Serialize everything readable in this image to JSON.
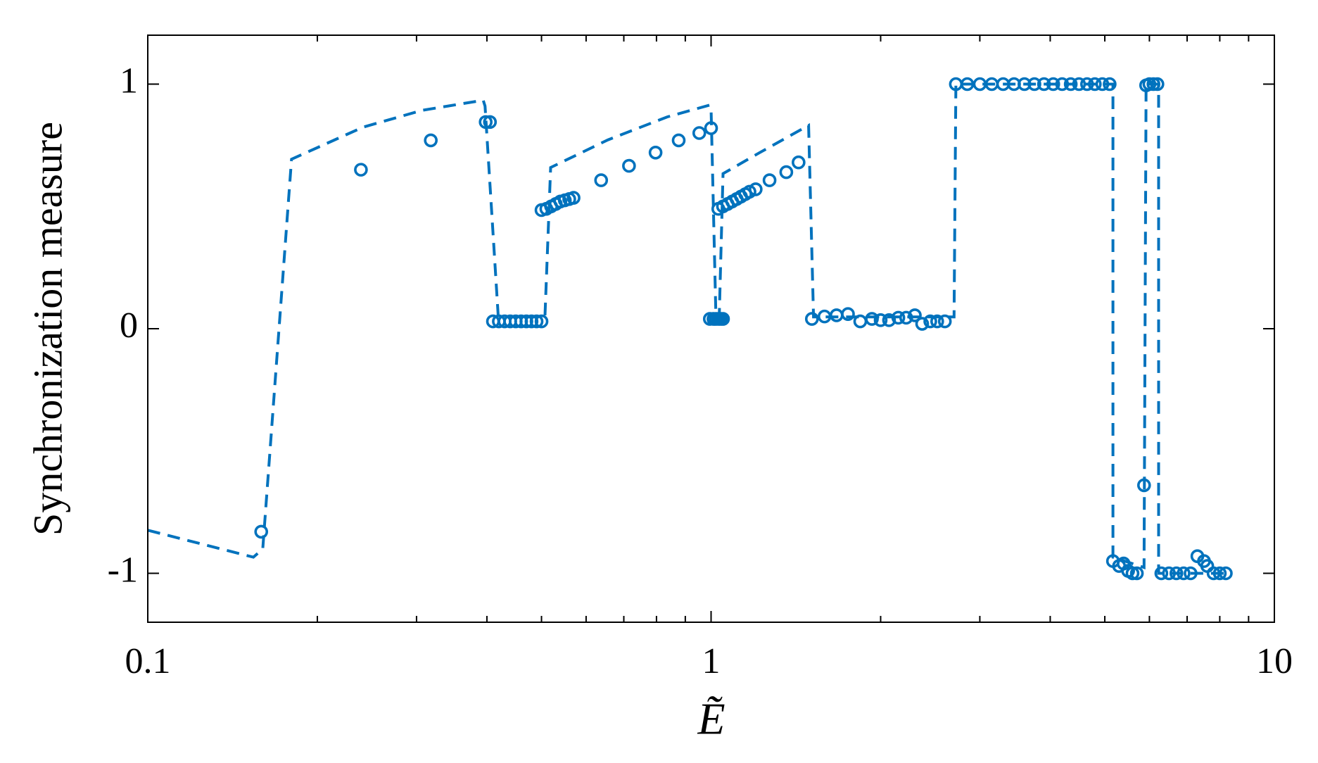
{
  "chart_data": {
    "type": "line",
    "xlabel": "Ẽ",
    "ylabel": "Synchronization measure",
    "xscale": "log",
    "xlim": [
      0.1,
      10
    ],
    "xticks": [
      0.1,
      1,
      10
    ],
    "xminorticks": [
      0.2,
      0.3,
      0.4,
      0.5,
      0.6,
      0.7,
      0.8,
      0.9,
      2,
      3,
      4,
      5,
      6,
      7,
      8,
      9
    ],
    "ylim": [
      -1.2,
      1.2
    ],
    "yticks": [
      -1,
      0,
      1
    ],
    "grid": false,
    "series": [
      {
        "color": "#0072bd",
        "line": "dashed",
        "x": [
          0.1,
          0.154,
          0.16,
          0.18,
          0.241,
          0.307,
          0.394,
          0.397,
          0.419,
          0.507,
          0.519,
          0.656,
          0.836,
          0.993,
          1.0,
          1.02,
          1.034,
          1.05,
          1.22,
          1.49,
          1.52,
          2.7,
          2.72,
          5.17,
          5.17,
          5.87,
          5.92,
          6.23,
          6.23,
          8.15
        ],
        "values": [
          -0.824,
          -0.934,
          -0.9,
          0.693,
          0.824,
          0.893,
          0.934,
          0.91,
          0.048,
          0.048,
          0.659,
          0.772,
          0.866,
          0.914,
          0.9,
          0.048,
          0.048,
          0.634,
          0.72,
          0.831,
          0.048,
          0.048,
          1,
          1,
          -0.934,
          -0.976,
          1,
          1,
          -1,
          -1
        ]
      },
      {
        "color": "#0072bd",
        "marker": "circle",
        "x": [
          0.159,
          0.239,
          0.318,
          0.398,
          0.405,
          0.41,
          0.42,
          0.43,
          0.44,
          0.45,
          0.46,
          0.47,
          0.48,
          0.49,
          0.5,
          0.5,
          0.51,
          0.52,
          0.53,
          0.54,
          0.55,
          0.56,
          0.57,
          0.638,
          0.715,
          0.797,
          0.876,
          0.953,
          1.0,
          0.995,
          1.01,
          1.02,
          1.03,
          1.04,
          1.05,
          1.03,
          1.05,
          1.07,
          1.09,
          1.11,
          1.13,
          1.15,
          1.17,
          1.2,
          1.27,
          1.36,
          1.43,
          1.51,
          1.59,
          1.67,
          1.75,
          1.84,
          1.93,
          2.0,
          2.07,
          2.15,
          2.22,
          2.3,
          2.37,
          2.45,
          2.52,
          2.6,
          2.72,
          2.85,
          3.0,
          3.15,
          3.3,
          3.45,
          3.6,
          3.75,
          3.9,
          4.05,
          4.2,
          4.35,
          4.5,
          4.65,
          4.8,
          4.95,
          5.1,
          5.17,
          5.3,
          5.4,
          5.5,
          5.6,
          5.7,
          5.87,
          5.92,
          6.0,
          6.1,
          6.2,
          6.3,
          6.5,
          6.7,
          6.9,
          7.1,
          7.3,
          7.5,
          7.6,
          7.8,
          8.0,
          8.2
        ],
        "values": [
          -0.83,
          0.65,
          0.77,
          0.845,
          0.845,
          0.03,
          0.03,
          0.03,
          0.03,
          0.03,
          0.03,
          0.03,
          0.03,
          0.03,
          0.03,
          0.485,
          0.49,
          0.5,
          0.51,
          0.52,
          0.525,
          0.53,
          0.535,
          0.607,
          0.666,
          0.72,
          0.77,
          0.8,
          0.82,
          0.04,
          0.04,
          0.04,
          0.04,
          0.04,
          0.04,
          0.49,
          0.5,
          0.51,
          0.52,
          0.53,
          0.54,
          0.55,
          0.56,
          0.57,
          0.607,
          0.64,
          0.68,
          0.04,
          0.05,
          0.055,
          0.06,
          0.03,
          0.04,
          0.035,
          0.035,
          0.045,
          0.045,
          0.055,
          0.02,
          0.03,
          0.03,
          0.03,
          1,
          1,
          1,
          1,
          1,
          1,
          1,
          1,
          1,
          1,
          1,
          1,
          1,
          1,
          1,
          1,
          1,
          -0.95,
          -0.97,
          -0.96,
          -0.99,
          -1,
          -1,
          -0.64,
          0.995,
          1,
          1,
          1,
          -1,
          -1,
          -1,
          -1,
          -1,
          -0.93,
          -0.95,
          -0.97,
          -1,
          -1,
          -1
        ]
      }
    ]
  }
}
